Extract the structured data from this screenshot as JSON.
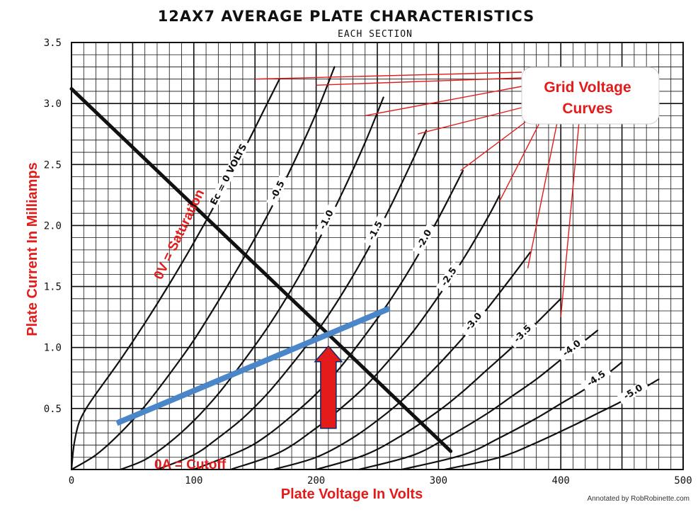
{
  "chart_data": {
    "type": "line",
    "title": "12AX7 AVERAGE PLATE CHARACTERISTICS",
    "subtitle": "EACH SECTION",
    "xlabel": "Plate Voltage In Volts",
    "ylabel": "Plate Current In Milliamps",
    "xlim": [
      0,
      500
    ],
    "ylim": [
      0,
      3.5
    ],
    "x_ticks": [
      "0",
      "100",
      "200",
      "300",
      "400",
      "500"
    ],
    "y_ticks": [
      "0.5",
      "1.0",
      "1.5",
      "2.0",
      "2.5",
      "3.0",
      "3.5"
    ],
    "grid": true,
    "series": [
      {
        "name": "Ec = 0 VOLTS",
        "label": "Ec = 0 VOLTS",
        "x": [
          0,
          2,
          6,
          12,
          20,
          40,
          60,
          80,
          100,
          120,
          140,
          160,
          170
        ],
        "y": [
          0,
          0.2,
          0.38,
          0.5,
          0.62,
          0.9,
          1.2,
          1.52,
          1.86,
          2.22,
          2.6,
          3.0,
          3.2
        ]
      },
      {
        "name": "-0.5",
        "label": "-0.5",
        "x": [
          0,
          20,
          40,
          60,
          80,
          100,
          120,
          140,
          160,
          180,
          200,
          215
        ],
        "y": [
          0,
          0.12,
          0.3,
          0.52,
          0.78,
          1.06,
          1.38,
          1.72,
          2.08,
          2.48,
          2.92,
          3.3
        ]
      },
      {
        "name": "-1.0",
        "label": "-1.0",
        "x": [
          40,
          60,
          80,
          100,
          120,
          140,
          160,
          180,
          200,
          220,
          240,
          255
        ],
        "y": [
          0,
          0.08,
          0.22,
          0.4,
          0.62,
          0.88,
          1.16,
          1.48,
          1.84,
          2.24,
          2.68,
          3.05
        ]
      },
      {
        "name": "-1.5",
        "label": "-1.5",
        "x": [
          70,
          100,
          120,
          140,
          160,
          180,
          200,
          220,
          240,
          260,
          280,
          290
        ],
        "y": [
          0,
          0.12,
          0.26,
          0.42,
          0.62,
          0.86,
          1.12,
          1.42,
          1.76,
          2.14,
          2.56,
          2.78
        ]
      },
      {
        "name": "-2.0",
        "label": "-2.0",
        "x": [
          100,
          140,
          160,
          180,
          200,
          220,
          240,
          260,
          280,
          300,
          320
        ],
        "y": [
          0,
          0.16,
          0.28,
          0.44,
          0.62,
          0.84,
          1.1,
          1.38,
          1.7,
          2.06,
          2.45
        ]
      },
      {
        "name": "-2.5",
        "label": "-2.5",
        "x": [
          130,
          170,
          200,
          220,
          240,
          260,
          280,
          300,
          320,
          340,
          350
        ],
        "y": [
          0,
          0.14,
          0.34,
          0.5,
          0.68,
          0.9,
          1.14,
          1.42,
          1.72,
          2.06,
          2.25
        ]
      },
      {
        "name": "-3.0",
        "label": "-3.0",
        "x": [
          165,
          200,
          230,
          260,
          280,
          300,
          320,
          340,
          360,
          375
        ],
        "y": [
          0,
          0.1,
          0.26,
          0.48,
          0.66,
          0.86,
          1.08,
          1.32,
          1.58,
          1.78
        ]
      },
      {
        "name": "-3.5",
        "label": "-3.5",
        "x": [
          200,
          240,
          270,
          300,
          320,
          340,
          360,
          380,
          400
        ],
        "y": [
          0,
          0.12,
          0.28,
          0.48,
          0.64,
          0.82,
          1.0,
          1.2,
          1.4
        ]
      },
      {
        "name": "-4.0",
        "label": "-4.0",
        "x": [
          235,
          280,
          310,
          340,
          360,
          380,
          400,
          420,
          430
        ],
        "y": [
          0,
          0.12,
          0.28,
          0.46,
          0.6,
          0.74,
          0.9,
          1.06,
          1.14
        ]
      },
      {
        "name": "-4.5",
        "label": "-4.5",
        "x": [
          270,
          320,
          350,
          380,
          400,
          420,
          440,
          450
        ],
        "y": [
          0,
          0.12,
          0.26,
          0.42,
          0.54,
          0.66,
          0.8,
          0.88
        ]
      },
      {
        "name": "-5.0",
        "label": "-5.0",
        "x": [
          305,
          350,
          380,
          410,
          430,
          450,
          470,
          480
        ],
        "y": [
          0,
          0.1,
          0.22,
          0.36,
          0.46,
          0.56,
          0.68,
          0.74
        ]
      }
    ],
    "load_line": {
      "color": "#111111",
      "x": [
        0,
        310
      ],
      "y": [
        3.12,
        0.15
      ]
    },
    "bias_line": {
      "color": "#4a86c8",
      "x": [
        37,
        260
      ],
      "y": [
        0.38,
        1.32
      ]
    },
    "arrow": {
      "color": "#e31b1b",
      "x": 210,
      "y_from": 0.5,
      "y_to": 1.0
    },
    "annotations": {
      "saturation": "0V = Saturation",
      "cutoff": "0A = Cutoff",
      "grid_callout_line1": "Grid Voltage",
      "grid_callout_line2": "Curves"
    },
    "credit": "Annotated by RobRobinette.com",
    "colors": {
      "curve": "#111111",
      "grid": "#111111",
      "annotation": "#e31b1b",
      "bias": "#4a86c8"
    }
  }
}
